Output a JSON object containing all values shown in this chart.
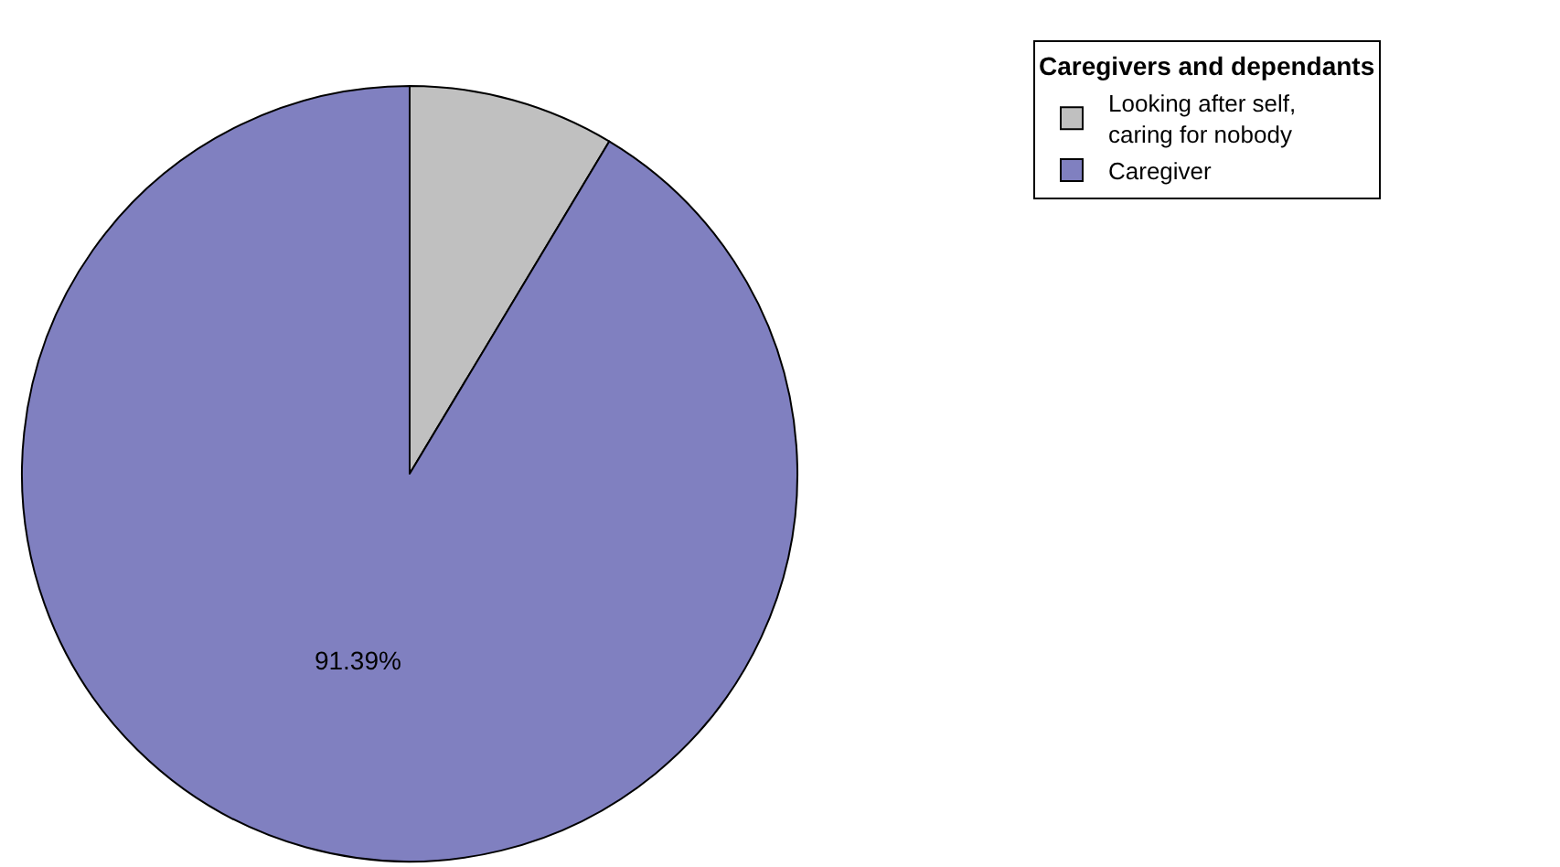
{
  "chart_data": {
    "type": "pie",
    "legend_title": "Caregivers and dependants",
    "categories": [
      "Looking after self, caring for nobody",
      "Caregiver"
    ],
    "values": [
      8.61,
      91.39
    ],
    "colors": [
      "#c0c0c0",
      "#8080c0"
    ],
    "value_labels": [
      null,
      "91.39%"
    ],
    "legend": "top right"
  }
}
